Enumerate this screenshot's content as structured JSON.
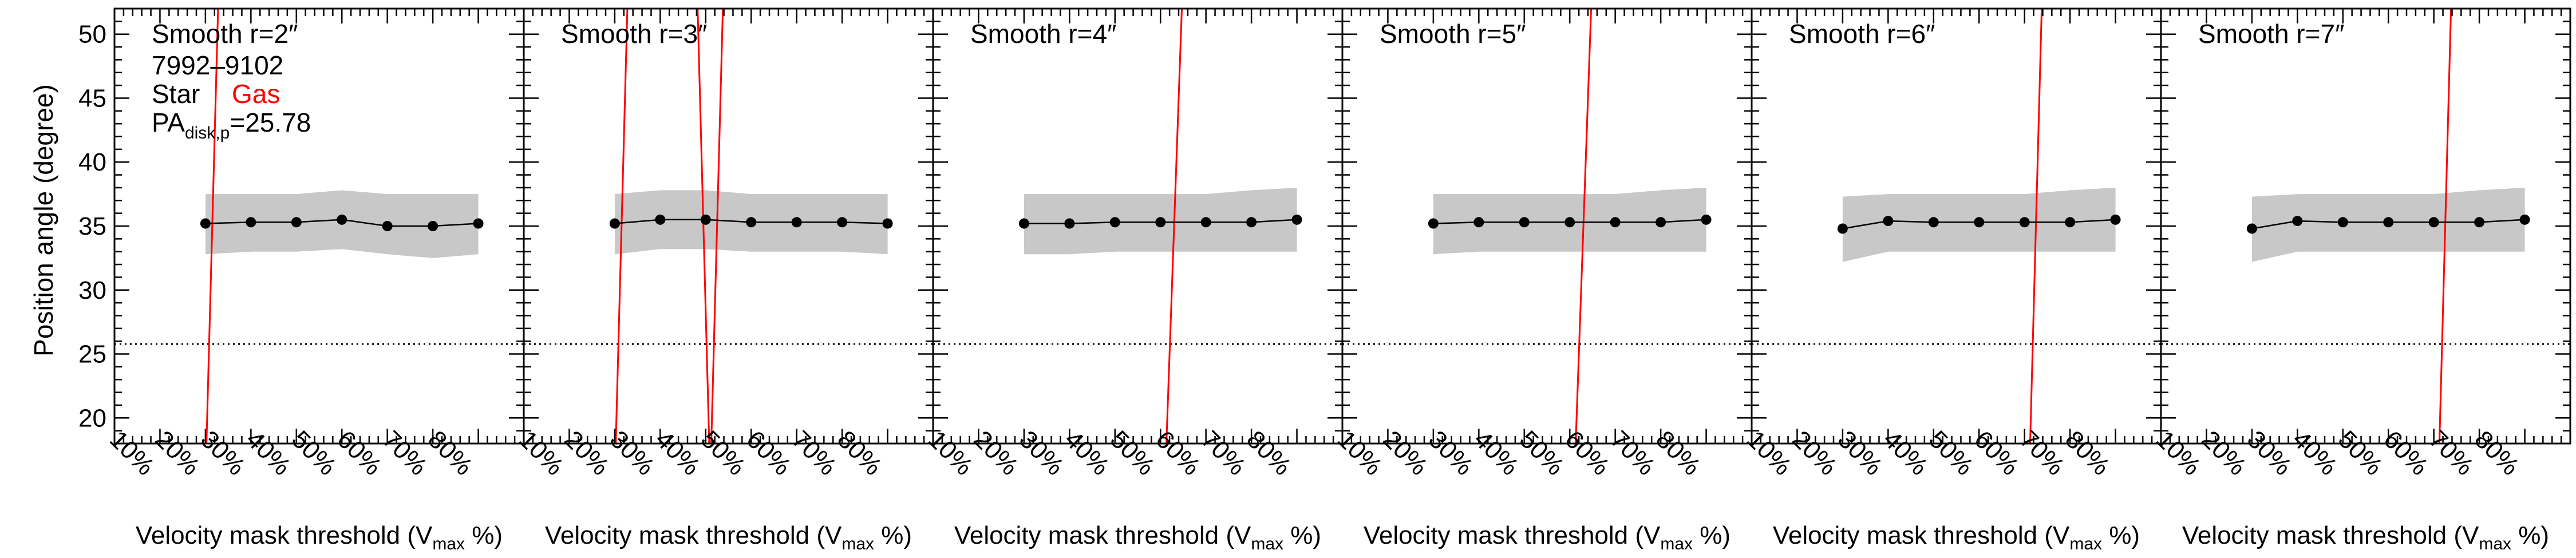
{
  "figure": {
    "ylabel": "Position angle (degree)",
    "xlabel_main": "Velocity mask threshold (V",
    "xlabel_sub": "max",
    "xlabel_tail": " %)",
    "legend_star": "Star",
    "legend_gas": "Gas",
    "galaxy_id": "7992–9102",
    "pa_main": "PA",
    "pa_sub": "disk,p",
    "pa_value_text": "=25.78"
  },
  "colors": {
    "star": "#000000",
    "gas": "#ff0000",
    "band": "#c8c8c8",
    "reference_line": "#000000"
  },
  "chart_data": [
    {
      "type": "line",
      "title": "Smooth r=2″",
      "xlabel": "Velocity mask threshold (Vmax %)",
      "ylabel": "Position angle (degree)",
      "x_tick_labels": [
        "10%",
        "20%",
        "30%",
        "40%",
        "50%",
        "60%",
        "70%",
        "80%"
      ],
      "x_tick_values": [
        10,
        20,
        30,
        40,
        50,
        60,
        70,
        80
      ],
      "xlim": [
        0,
        90
      ],
      "ylim": [
        18,
        52
      ],
      "y_ticks": [
        20,
        25,
        30,
        35,
        40,
        45,
        50
      ],
      "reference_line": {
        "y": 25.78,
        "style": "dotted"
      },
      "series": [
        {
          "name": "Star",
          "x": [
            20,
            30,
            40,
            50,
            60,
            70,
            80
          ],
          "y": [
            35.2,
            35.3,
            35.3,
            35.5,
            35.0,
            35.0,
            35.2
          ],
          "band_upper": [
            37.5,
            37.5,
            37.5,
            37.8,
            37.5,
            37.5,
            37.5
          ],
          "band_lower": [
            32.8,
            33.0,
            33.0,
            33.2,
            32.8,
            32.5,
            32.8
          ]
        },
        {
          "name": "Gas",
          "x": [
            20,
            23
          ],
          "y": [
            15.0,
            55.0
          ]
        }
      ]
    },
    {
      "type": "line",
      "title": "Smooth r=3″",
      "xlabel": "Velocity mask threshold (Vmax %)",
      "ylabel": "",
      "x_tick_labels": [
        "10%",
        "20%",
        "30%",
        "40%",
        "50%",
        "60%",
        "70%",
        "80%"
      ],
      "x_tick_values": [
        10,
        20,
        30,
        40,
        50,
        60,
        70,
        80
      ],
      "xlim": [
        0,
        90
      ],
      "ylim": [
        18,
        52
      ],
      "reference_line": {
        "y": 25.78,
        "style": "dotted"
      },
      "series": [
        {
          "name": "Star",
          "x": [
            20,
            30,
            40,
            50,
            60,
            70,
            80
          ],
          "y": [
            35.2,
            35.5,
            35.5,
            35.3,
            35.3,
            35.3,
            35.2
          ],
          "band_upper": [
            37.5,
            37.8,
            37.8,
            37.5,
            37.5,
            37.5,
            37.5
          ],
          "band_lower": [
            32.8,
            33.2,
            33.2,
            33.0,
            33.0,
            33.0,
            32.8
          ]
        },
        {
          "name": "Gas",
          "x": [
            20,
            23
          ],
          "y": [
            15.0,
            55.0
          ]
        },
        {
          "name": "Gas",
          "x": [
            38,
            41
          ],
          "y": [
            55.0,
            15.0
          ]
        },
        {
          "name": "Gas",
          "x": [
            41,
            44
          ],
          "y": [
            15.0,
            55.0
          ]
        }
      ]
    },
    {
      "type": "line",
      "title": "Smooth r=4″",
      "xlabel": "Velocity mask threshold (Vmax %)",
      "ylabel": "",
      "x_tick_labels": [
        "10%",
        "20%",
        "30%",
        "40%",
        "50%",
        "60%",
        "70%",
        "80%"
      ],
      "x_tick_values": [
        10,
        20,
        30,
        40,
        50,
        60,
        70,
        80
      ],
      "xlim": [
        0,
        90
      ],
      "ylim": [
        18,
        52
      ],
      "reference_line": {
        "y": 25.78,
        "style": "dotted"
      },
      "series": [
        {
          "name": "Star",
          "x": [
            20,
            30,
            40,
            50,
            60,
            70,
            80
          ],
          "y": [
            35.2,
            35.2,
            35.3,
            35.3,
            35.3,
            35.3,
            35.5
          ],
          "band_upper": [
            37.5,
            37.5,
            37.5,
            37.5,
            37.5,
            37.8,
            38.0
          ],
          "band_lower": [
            32.8,
            32.8,
            33.0,
            33.0,
            33.0,
            33.0,
            33.0
          ]
        },
        {
          "name": "Gas",
          "x": [
            51,
            55
          ],
          "y": [
            15.0,
            55.0
          ]
        }
      ]
    },
    {
      "type": "line",
      "title": "Smooth r=5″",
      "xlabel": "Velocity mask threshold (Vmax %)",
      "ylabel": "",
      "x_tick_labels": [
        "10%",
        "20%",
        "30%",
        "40%",
        "50%",
        "60%",
        "70%",
        "80%"
      ],
      "x_tick_values": [
        10,
        20,
        30,
        40,
        50,
        60,
        70,
        80
      ],
      "xlim": [
        0,
        90
      ],
      "ylim": [
        18,
        52
      ],
      "reference_line": {
        "y": 25.78,
        "style": "dotted"
      },
      "series": [
        {
          "name": "Star",
          "x": [
            20,
            30,
            40,
            50,
            60,
            70,
            80
          ],
          "y": [
            35.2,
            35.3,
            35.3,
            35.3,
            35.3,
            35.3,
            35.5
          ],
          "band_upper": [
            37.5,
            37.5,
            37.5,
            37.5,
            37.5,
            37.8,
            38.0
          ],
          "band_lower": [
            32.8,
            33.0,
            33.0,
            33.0,
            33.0,
            33.0,
            33.0
          ]
        },
        {
          "name": "Gas",
          "x": [
            51,
            55
          ],
          "y": [
            15.0,
            55.0
          ]
        }
      ]
    },
    {
      "type": "line",
      "title": "Smooth r=6″",
      "xlabel": "Velocity mask threshold (Vmax %)",
      "ylabel": "",
      "x_tick_labels": [
        "10%",
        "20%",
        "30%",
        "40%",
        "50%",
        "60%",
        "70%",
        "80%"
      ],
      "x_tick_values": [
        10,
        20,
        30,
        40,
        50,
        60,
        70,
        80
      ],
      "xlim": [
        0,
        90
      ],
      "ylim": [
        18,
        52
      ],
      "reference_line": {
        "y": 25.78,
        "style": "dotted"
      },
      "series": [
        {
          "name": "Star",
          "x": [
            20,
            30,
            40,
            50,
            60,
            70,
            80
          ],
          "y": [
            34.8,
            35.4,
            35.3,
            35.3,
            35.3,
            35.3,
            35.5
          ],
          "band_upper": [
            37.3,
            37.5,
            37.5,
            37.5,
            37.5,
            37.8,
            38.0
          ],
          "band_lower": [
            32.2,
            33.0,
            33.0,
            33.0,
            33.0,
            33.0,
            33.0
          ]
        },
        {
          "name": "Gas",
          "x": [
            61,
            64
          ],
          "y": [
            15.0,
            55.0
          ]
        }
      ]
    },
    {
      "type": "line",
      "title": "Smooth r=7″",
      "xlabel": "Velocity mask threshold (Vmax %)",
      "ylabel": "",
      "x_tick_labels": [
        "10%",
        "20%",
        "30%",
        "40%",
        "50%",
        "60%",
        "70%",
        "80%"
      ],
      "x_tick_values": [
        10,
        20,
        30,
        40,
        50,
        60,
        70,
        80
      ],
      "xlim": [
        0,
        90
      ],
      "ylim": [
        18,
        52
      ],
      "reference_line": {
        "y": 25.78,
        "style": "dotted"
      },
      "series": [
        {
          "name": "Star",
          "x": [
            20,
            30,
            40,
            50,
            60,
            70,
            80
          ],
          "y": [
            34.8,
            35.4,
            35.3,
            35.3,
            35.3,
            35.3,
            35.5
          ],
          "band_upper": [
            37.3,
            37.5,
            37.5,
            37.5,
            37.5,
            37.8,
            38.0
          ],
          "band_lower": [
            32.2,
            33.0,
            33.0,
            33.0,
            33.0,
            33.0,
            33.0
          ]
        },
        {
          "name": "Gas",
          "x": [
            61,
            64
          ],
          "y": [
            15.0,
            55.0
          ]
        }
      ]
    }
  ]
}
